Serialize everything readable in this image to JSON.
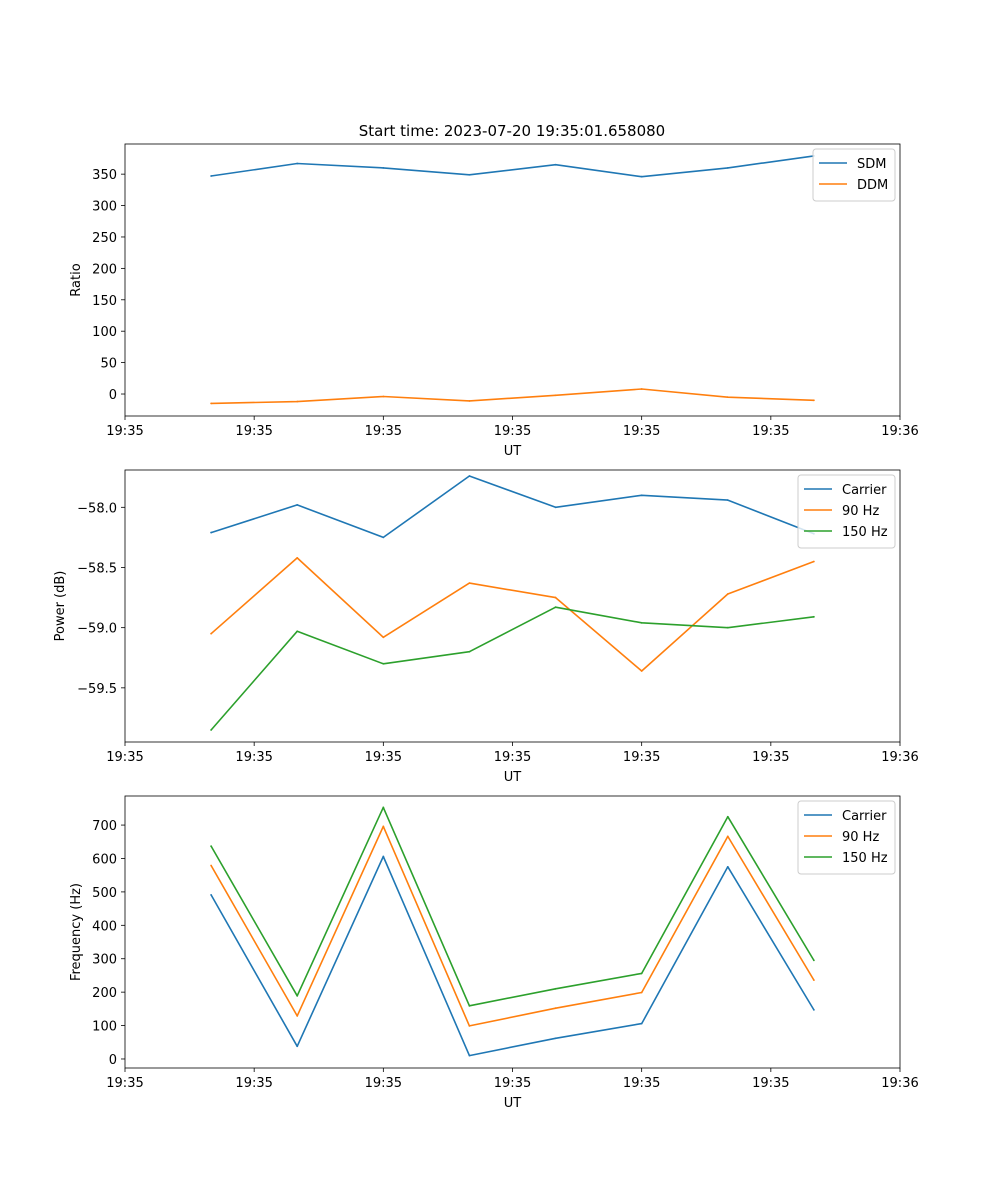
{
  "figure": {
    "title": "Start time: 2023-07-20 19:35:01.658080"
  },
  "chart_data": [
    {
      "type": "line",
      "title": "Start time: 2023-07-20 19:35:01.658080",
      "xlabel": "UT",
      "ylabel": "Ratio",
      "xlim": [
        -1,
        8
      ],
      "ylim": [
        -35,
        398
      ],
      "x": [
        0,
        1,
        2,
        3,
        4,
        5,
        6,
        7
      ],
      "x_ticks": [
        -1,
        0.5,
        2,
        3.5,
        5,
        6.5,
        8
      ],
      "x_tick_labels": [
        "19:35",
        "19:35",
        "19:35",
        "19:35",
        "19:35",
        "19:35",
        "19:36"
      ],
      "y_ticks": [
        0,
        50,
        100,
        150,
        200,
        250,
        300,
        350
      ],
      "y_tick_labels": [
        "0",
        "50",
        "100",
        "150",
        "200",
        "250",
        "300",
        "350"
      ],
      "legend_position": "top-right",
      "series": [
        {
          "name": "SDM",
          "color": "#1f77b4",
          "values": [
            347,
            367,
            360,
            349,
            365,
            346,
            360,
            379
          ]
        },
        {
          "name": "DDM",
          "color": "#ff7f0e",
          "values": [
            -15,
            -12,
            -4,
            -11,
            -2,
            8,
            -5,
            -10
          ]
        }
      ]
    },
    {
      "type": "line",
      "title": "",
      "xlabel": "UT",
      "ylabel": "Power (dB)",
      "xlim": [
        -1,
        8
      ],
      "ylim": [
        -59.95,
        -57.69
      ],
      "x": [
        0,
        1,
        2,
        3,
        4,
        5,
        6,
        7
      ],
      "x_ticks": [
        -1,
        0.5,
        2,
        3.5,
        5,
        6.5,
        8
      ],
      "x_tick_labels": [
        "19:35",
        "19:35",
        "19:35",
        "19:35",
        "19:35",
        "19:35",
        "19:36"
      ],
      "y_ticks": [
        -58.0,
        -58.5,
        -59.0,
        -59.5
      ],
      "y_tick_labels": [
        "−58.0",
        "−58.5",
        "−59.0",
        "−59.5"
      ],
      "legend_position": "top-right",
      "series": [
        {
          "name": "Carrier",
          "color": "#1f77b4",
          "values": [
            -58.21,
            -57.98,
            -58.25,
            -57.74,
            -58.0,
            -57.9,
            -57.94,
            -58.22
          ]
        },
        {
          "name": "90 Hz",
          "color": "#ff7f0e",
          "values": [
            -59.05,
            -58.42,
            -59.08,
            -58.63,
            -58.75,
            -59.36,
            -58.72,
            -58.45
          ]
        },
        {
          "name": "150 Hz",
          "color": "#2ca02c",
          "values": [
            -59.85,
            -59.03,
            -59.3,
            -59.2,
            -58.83,
            -58.96,
            -59.0,
            -58.91
          ]
        }
      ]
    },
    {
      "type": "line",
      "title": "",
      "xlabel": "UT",
      "ylabel": "Frequency (Hz)",
      "xlim": [
        -1,
        8
      ],
      "ylim": [
        -27,
        787
      ],
      "x": [
        0,
        1,
        2,
        3,
        4,
        5,
        6,
        7
      ],
      "x_ticks": [
        -1,
        0.5,
        2,
        3.5,
        5,
        6.5,
        8
      ],
      "x_tick_labels": [
        "19:35",
        "19:35",
        "19:35",
        "19:35",
        "19:35",
        "19:35",
        "19:36"
      ],
      "y_ticks": [
        0,
        100,
        200,
        300,
        400,
        500,
        600,
        700
      ],
      "y_tick_labels": [
        "0",
        "100",
        "200",
        "300",
        "400",
        "500",
        "600",
        "700"
      ],
      "legend_position": "top-right",
      "series": [
        {
          "name": "Carrier",
          "color": "#1f77b4",
          "values": [
            491,
            38,
            606,
            10,
            62,
            106,
            575,
            147
          ]
        },
        {
          "name": "90 Hz",
          "color": "#ff7f0e",
          "values": [
            579,
            129,
            696,
            99,
            152,
            199,
            666,
            236
          ]
        },
        {
          "name": "150 Hz",
          "color": "#2ca02c",
          "values": [
            637,
            189,
            753,
            159,
            210,
            256,
            725,
            295
          ]
        }
      ]
    }
  ]
}
